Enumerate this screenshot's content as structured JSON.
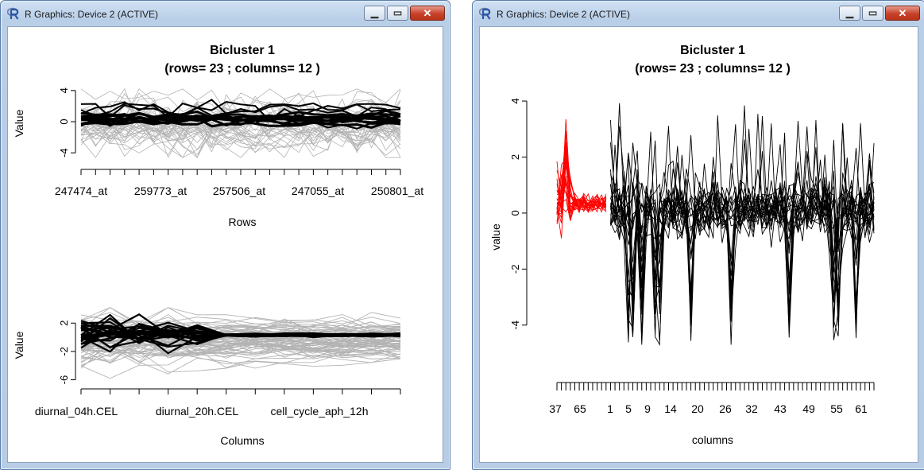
{
  "windows": [
    {
      "title": "R Graphics: Device 2 (ACTIVE)"
    },
    {
      "title": "R Graphics: Device 2 (ACTIVE)"
    }
  ],
  "colors": {
    "highlight": "#000000",
    "background_lines": "#b3b3b3",
    "bicluster_red": "#ff0000"
  },
  "icons": {
    "app": "r-logo-icon",
    "minimize": "minimize-icon",
    "maximize": "maximize-icon",
    "close": "close-icon"
  },
  "chart_data": [
    {
      "type": "line",
      "title": "Bicluster 1",
      "subtitle": "(rows= 23 ; columns= 12 )",
      "xlabel": "Rows",
      "ylabel": "Value",
      "yticks": [
        "-4",
        "0",
        "4"
      ],
      "ylim": [
        -5,
        5
      ],
      "xticklabels": [
        "247474_at",
        "259773_at",
        "257506_at",
        "247055_at",
        "250801_at"
      ],
      "n_xticks": 23
    },
    {
      "type": "line",
      "xlabel": "Columns",
      "ylabel": "Value",
      "yticks": [
        "-6",
        "-2",
        "2"
      ],
      "ylim": [
        -6.5,
        4.5
      ],
      "xticklabels": [
        "diurnal_04h.CEL",
        "diurnal_20h.CEL",
        "cell_cycle_aph_12h"
      ],
      "n_xticks": 12
    },
    {
      "type": "line",
      "title": "Bicluster 1",
      "subtitle": "(rows= 23 ; columns= 12 )",
      "xlabel": "columns",
      "ylabel": "value",
      "yticks": [
        "-4",
        "-2",
        "0",
        "2",
        "4"
      ],
      "ylim": [
        -5,
        4.2
      ],
      "xticklabels": [
        "37",
        "65",
        "1",
        "5",
        "9",
        "14",
        "20",
        "26",
        "32",
        "43",
        "49",
        "55",
        "61"
      ],
      "n_xticks": 72
    }
  ]
}
